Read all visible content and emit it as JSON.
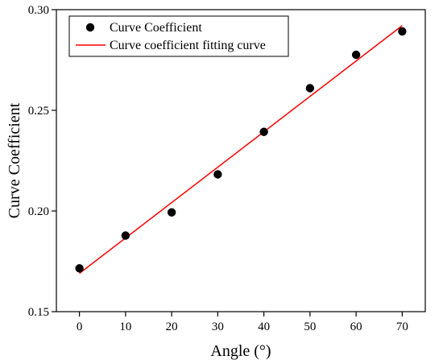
{
  "chart_data": {
    "type": "scatter",
    "title": "",
    "xlabel": "Angle (°)",
    "ylabel": "Curve Coefficient",
    "xlim": [
      -5,
      75
    ],
    "ylim": [
      0.15,
      0.3
    ],
    "xticks": [
      0,
      10,
      20,
      30,
      40,
      50,
      60,
      70
    ],
    "yticks": [
      0.15,
      0.2,
      0.25,
      0.3
    ],
    "xtick_labels": [
      "0",
      "10",
      "20",
      "30",
      "40",
      "50",
      "60",
      "70"
    ],
    "ytick_labels": [
      "0.15",
      "0.20",
      "0.25",
      "0.30"
    ],
    "grid": false,
    "legend_position": "top-left",
    "series": [
      {
        "name": "Curve Coefficient",
        "kind": "scatter",
        "color": "#000000",
        "x": [
          0,
          10,
          20,
          30,
          40,
          50,
          60,
          70
        ],
        "y": [
          0.1715,
          0.1878,
          0.1993,
          0.2182,
          0.2393,
          0.261,
          0.2776,
          0.2892
        ]
      },
      {
        "name": "Curve coefficient fitting curve",
        "kind": "line",
        "color": "#ff0000",
        "x": [
          0,
          70
        ],
        "y": [
          0.169,
          0.2921
        ]
      }
    ]
  }
}
